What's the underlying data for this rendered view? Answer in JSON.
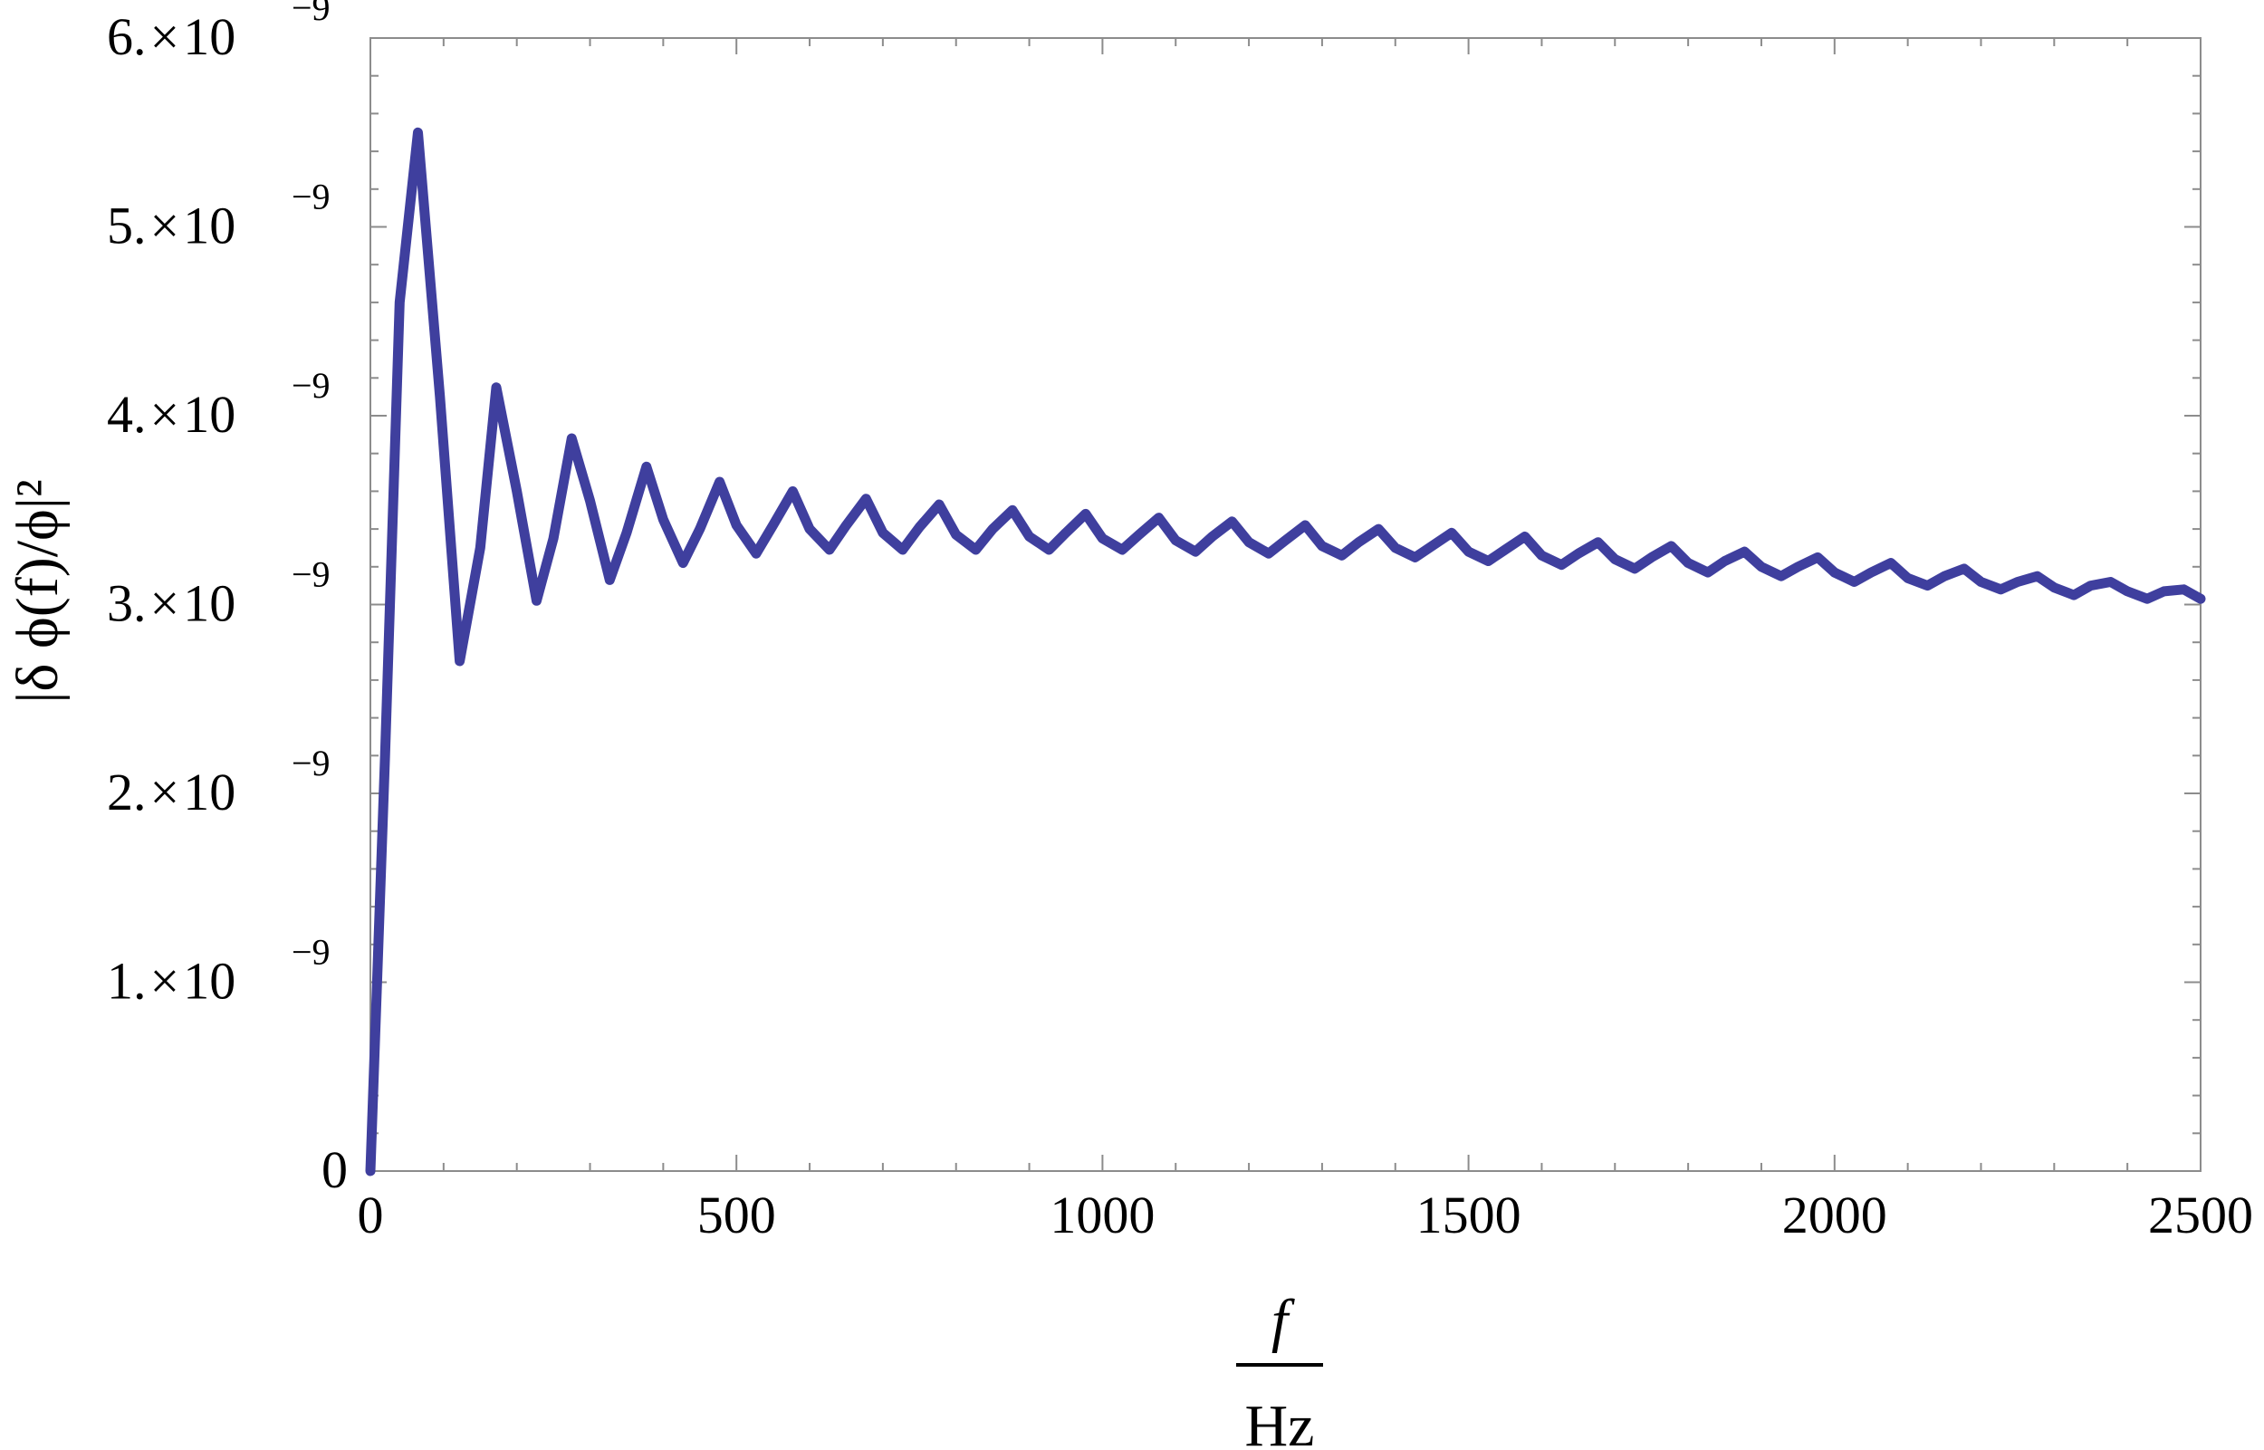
{
  "chart_data": {
    "type": "line",
    "title": "",
    "xlabel": {
      "numerator": "f",
      "denominator": "Hz"
    },
    "ylabel": "|δ ϕ(f)/ϕ|²",
    "xlim": [
      0,
      2500
    ],
    "ylim": [
      0,
      6e-09
    ],
    "grid": false,
    "legend": "none",
    "line_color": "#3f3f9e",
    "x_ticks": [
      {
        "value": 0,
        "label": "0"
      },
      {
        "value": 500,
        "label": "500"
      },
      {
        "value": 1000,
        "label": "1000"
      },
      {
        "value": 1500,
        "label": "1500"
      },
      {
        "value": 2000,
        "label": "2000"
      },
      {
        "value": 2500,
        "label": "2500"
      }
    ],
    "y_ticks": [
      {
        "value": 0,
        "mantissa": "0",
        "times": "",
        "base": "",
        "exponent": ""
      },
      {
        "value": 1e-09,
        "mantissa": "1.",
        "times": "×",
        "base": "10",
        "exponent": "−9"
      },
      {
        "value": 2e-09,
        "mantissa": "2.",
        "times": "×",
        "base": "10",
        "exponent": "−9"
      },
      {
        "value": 3e-09,
        "mantissa": "3.",
        "times": "×",
        "base": "10",
        "exponent": "−9"
      },
      {
        "value": 4e-09,
        "mantissa": "4.",
        "times": "×",
        "base": "10",
        "exponent": "−9"
      },
      {
        "value": 5e-09,
        "mantissa": "5.",
        "times": "×",
        "base": "10",
        "exponent": "−9"
      },
      {
        "value": 6e-09,
        "mantissa": "6.",
        "times": "×",
        "base": "10",
        "exponent": "−9"
      }
    ],
    "series": [
      {
        "x": [
          0,
          20,
          40,
          65,
          95,
          122,
          150,
          172,
          200,
          227,
          250,
          275,
          300,
          327,
          350,
          377,
          400,
          427,
          450,
          477,
          500,
          527,
          550,
          577,
          600,
          627,
          650,
          677,
          700,
          727,
          750,
          777,
          800,
          827,
          850,
          877,
          900,
          927,
          950,
          977,
          1000,
          1027,
          1050,
          1077,
          1100,
          1127,
          1150,
          1177,
          1200,
          1227,
          1250,
          1277,
          1300,
          1327,
          1350,
          1377,
          1400,
          1427,
          1450,
          1477,
          1500,
          1527,
          1550,
          1577,
          1600,
          1627,
          1650,
          1677,
          1700,
          1727,
          1750,
          1777,
          1800,
          1827,
          1850,
          1877,
          1900,
          1927,
          1950,
          1977,
          2000,
          2027,
          2050,
          2077,
          2100,
          2127,
          2150,
          2177,
          2200,
          2227,
          2250,
          2277,
          2300,
          2327,
          2350,
          2377,
          2400,
          2427,
          2450,
          2477,
          2500
        ],
        "y": [
          0,
          2.2e-09,
          4.6e-09,
          5.5e-09,
          4.1e-09,
          2.7e-09,
          3.3e-09,
          4.15e-09,
          3.6e-09,
          3.02e-09,
          3.35e-09,
          3.88e-09,
          3.55e-09,
          3.13e-09,
          3.38e-09,
          3.73e-09,
          3.45e-09,
          3.22e-09,
          3.4e-09,
          3.65e-09,
          3.42e-09,
          3.27e-09,
          3.42e-09,
          3.6e-09,
          3.4e-09,
          3.29e-09,
          3.42e-09,
          3.56e-09,
          3.38e-09,
          3.29e-09,
          3.41e-09,
          3.53e-09,
          3.37e-09,
          3.29e-09,
          3.4e-09,
          3.5e-09,
          3.36e-09,
          3.29e-09,
          3.38e-09,
          3.48e-09,
          3.35e-09,
          3.29e-09,
          3.37e-09,
          3.46e-09,
          3.34e-09,
          3.28e-09,
          3.36e-09,
          3.44e-09,
          3.33e-09,
          3.27e-09,
          3.34e-09,
          3.42e-09,
          3.31e-09,
          3.26e-09,
          3.33e-09,
          3.4e-09,
          3.3e-09,
          3.25e-09,
          3.31e-09,
          3.38e-09,
          3.28e-09,
          3.23e-09,
          3.29e-09,
          3.36e-09,
          3.26e-09,
          3.21e-09,
          3.27e-09,
          3.33e-09,
          3.24e-09,
          3.19e-09,
          3.25e-09,
          3.31e-09,
          3.22e-09,
          3.17e-09,
          3.23e-09,
          3.28e-09,
          3.2e-09,
          3.15e-09,
          3.2e-09,
          3.25e-09,
          3.17e-09,
          3.12e-09,
          3.17e-09,
          3.22e-09,
          3.14e-09,
          3.1e-09,
          3.15e-09,
          3.19e-09,
          3.12e-09,
          3.08e-09,
          3.12e-09,
          3.15e-09,
          3.09e-09,
          3.05e-09,
          3.1e-09,
          3.12e-09,
          3.07e-09,
          3.03e-09,
          3.07e-09,
          3.08e-09,
          3.03e-09
        ]
      }
    ]
  }
}
